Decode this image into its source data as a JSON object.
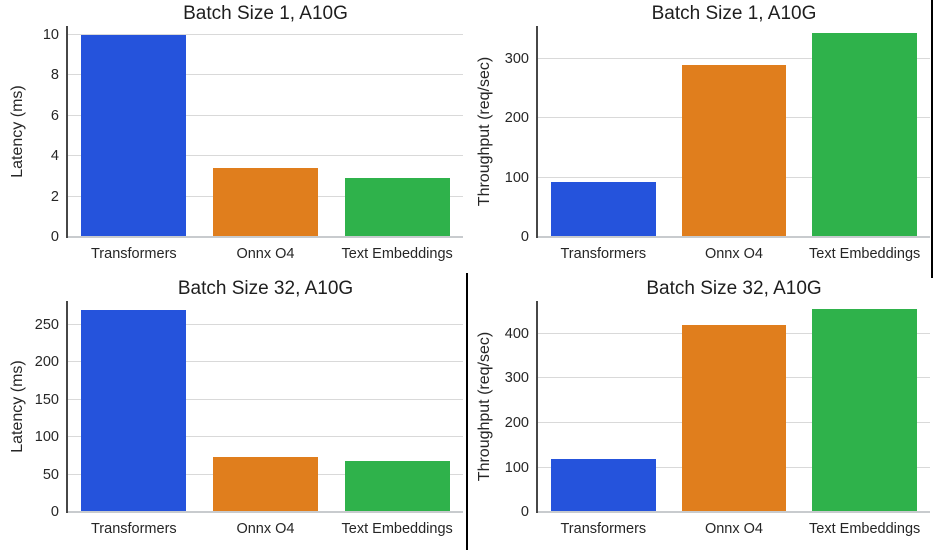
{
  "palette": {
    "transformers_blue": "#2553dc",
    "onnx_orange": "#e07e1d",
    "text_embeddings_green": "#2fb24b",
    "gridline": "#d9d9d9",
    "baseline": "#c8cbce",
    "spine": "#474747",
    "text": "#262626",
    "separator": "#000000",
    "background": "#ffffff"
  },
  "chart_data": [
    {
      "type": "bar",
      "title": "Batch Size 1, A10G",
      "ylabel": "Latency (ms)",
      "xlabel": "",
      "categories": [
        "Transformers",
        "Onnx O4",
        "Text Embeddings"
      ],
      "values": [
        10.0,
        3.4,
        2.9
      ],
      "bar_colors": [
        "#2553dc",
        "#e07e1d",
        "#2fb24b"
      ],
      "yticks": [
        0,
        2,
        4,
        6,
        8,
        10
      ],
      "ylim": [
        0,
        10.42
      ],
      "grid": "horizontal",
      "legend": "none",
      "spines": "left and bottom only"
    },
    {
      "type": "bar",
      "title": "Batch Size 1, A10G",
      "ylabel": "Throughput (req/sec)",
      "xlabel": "",
      "categories": [
        "Transformers",
        "Onnx O4",
        "Text Embeddings"
      ],
      "values": [
        92,
        289,
        343
      ],
      "bar_colors": [
        "#2553dc",
        "#e07e1d",
        "#2fb24b"
      ],
      "yticks": [
        0,
        100,
        200,
        300
      ],
      "ylim": [
        0,
        355
      ],
      "grid": "horizontal",
      "legend": "none",
      "spines": "left and bottom only"
    },
    {
      "type": "bar",
      "title": "Batch Size 32, A10G",
      "ylabel": "Latency (ms)",
      "xlabel": "",
      "categories": [
        "Transformers",
        "Onnx O4",
        "Text Embeddings"
      ],
      "values": [
        270,
        74,
        68
      ],
      "bar_colors": [
        "#2553dc",
        "#e07e1d",
        "#2fb24b"
      ],
      "yticks": [
        0,
        50,
        100,
        150,
        200,
        250
      ],
      "ylim": [
        0,
        282
      ],
      "grid": "horizontal",
      "legend": "none",
      "spines": "left and bottom only"
    },
    {
      "type": "bar",
      "title": "Batch Size 32, A10G",
      "ylabel": "Throughput (req/sec)",
      "xlabel": "",
      "categories": [
        "Transformers",
        "Onnx O4",
        "Text Embeddings"
      ],
      "values": [
        118,
        420,
        456
      ],
      "bar_colors": [
        "#2553dc",
        "#e07e1d",
        "#2fb24b"
      ],
      "yticks": [
        0,
        100,
        200,
        300,
        400
      ],
      "ylim": [
        0,
        474
      ],
      "grid": "horizontal",
      "legend": "none",
      "spines": "left and bottom only"
    }
  ]
}
